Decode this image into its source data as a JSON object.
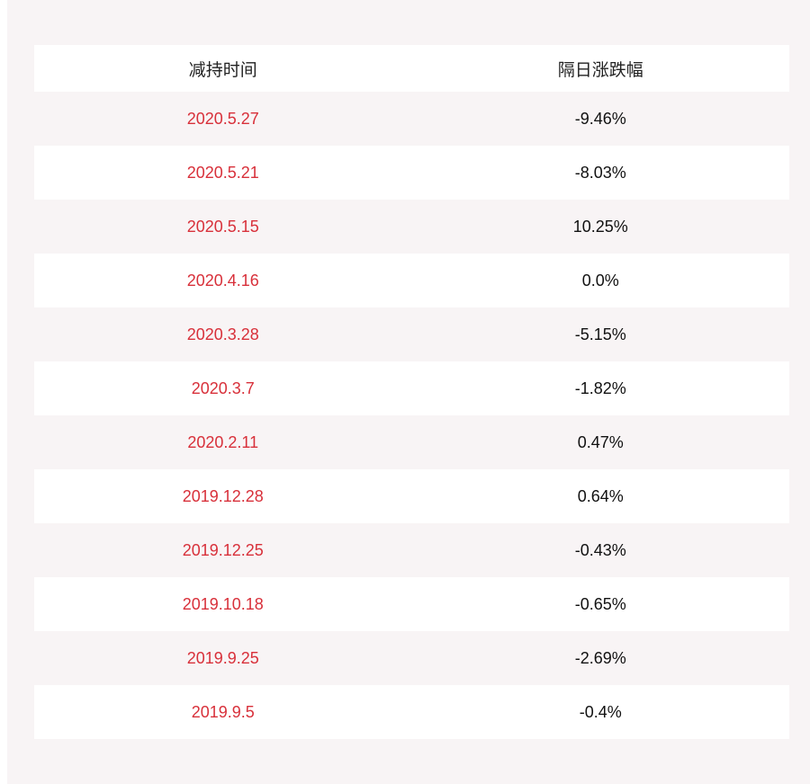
{
  "table": {
    "headers": [
      "减持时间",
      "隔日涨跌幅"
    ],
    "rows": [
      {
        "date": "2020.5.27",
        "change": "-9.46%"
      },
      {
        "date": "2020.5.21",
        "change": "-8.03%"
      },
      {
        "date": "2020.5.15",
        "change": "10.25%"
      },
      {
        "date": "2020.4.16",
        "change": "0.0%"
      },
      {
        "date": "2020.3.28",
        "change": "-5.15%"
      },
      {
        "date": "2020.3.7",
        "change": "-1.82%"
      },
      {
        "date": "2020.2.11",
        "change": "0.47%"
      },
      {
        "date": "2019.12.28",
        "change": "0.64%"
      },
      {
        "date": "2019.12.25",
        "change": "-0.43%"
      },
      {
        "date": "2019.10.18",
        "change": "-0.65%"
      },
      {
        "date": "2019.9.25",
        "change": "-2.69%"
      },
      {
        "date": "2019.9.5",
        "change": "-0.4%"
      }
    ]
  },
  "colors": {
    "date_text": "#d8303a",
    "value_text": "#111111",
    "stripe": "#f8f4f5",
    "row_white": "#ffffff"
  }
}
